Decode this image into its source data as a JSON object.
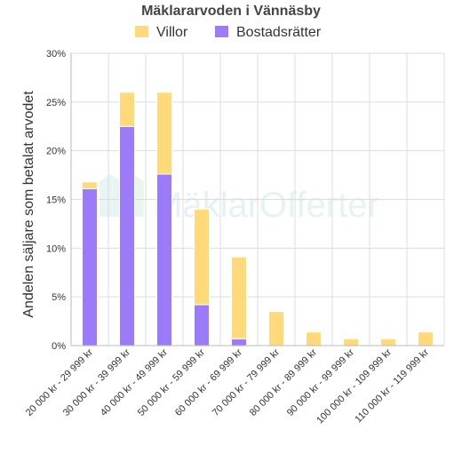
{
  "chart_data": {
    "type": "bar",
    "stacked": true,
    "title": "Mäklararvoden i Vännäsby",
    "xlabel": "",
    "ylabel": "Andelen säljare som betalat arvodet",
    "ylim": [
      0,
      30
    ],
    "yticks": [
      "0%",
      "5%",
      "10%",
      "15%",
      "20%",
      "25%",
      "30%"
    ],
    "grid": true,
    "legend_position": "top",
    "categories": [
      "20 000 kr - 29 999 kr",
      "30 000 kr - 39 999 kr",
      "40 000 kr - 49 999 kr",
      "50 000 kr - 59 999 kr",
      "60 000 kr - 69 999 kr",
      "70 000 kr - 79 999 kr",
      "80 000 kr - 89 999 kr",
      "90 000 kr - 99 999 kr",
      "100 000 kr - 109 999 kr",
      "110 000 kr - 119 999 kr"
    ],
    "series": [
      {
        "name": "Bostadsrätter",
        "color": "#9b7bf7",
        "values": [
          16.1,
          22.5,
          17.6,
          4.2,
          0.7,
          0,
          0,
          0,
          0,
          0
        ]
      },
      {
        "name": "Villor",
        "color": "#ffd97a",
        "values": [
          0.7,
          3.5,
          8.4,
          9.8,
          8.4,
          3.5,
          1.4,
          0.7,
          0.7,
          1.4
        ]
      }
    ],
    "legend_order": [
      "Villor",
      "Bostadsrätter"
    ]
  },
  "watermark": {
    "part1": "Mäklar",
    "part2": "Offerter"
  }
}
